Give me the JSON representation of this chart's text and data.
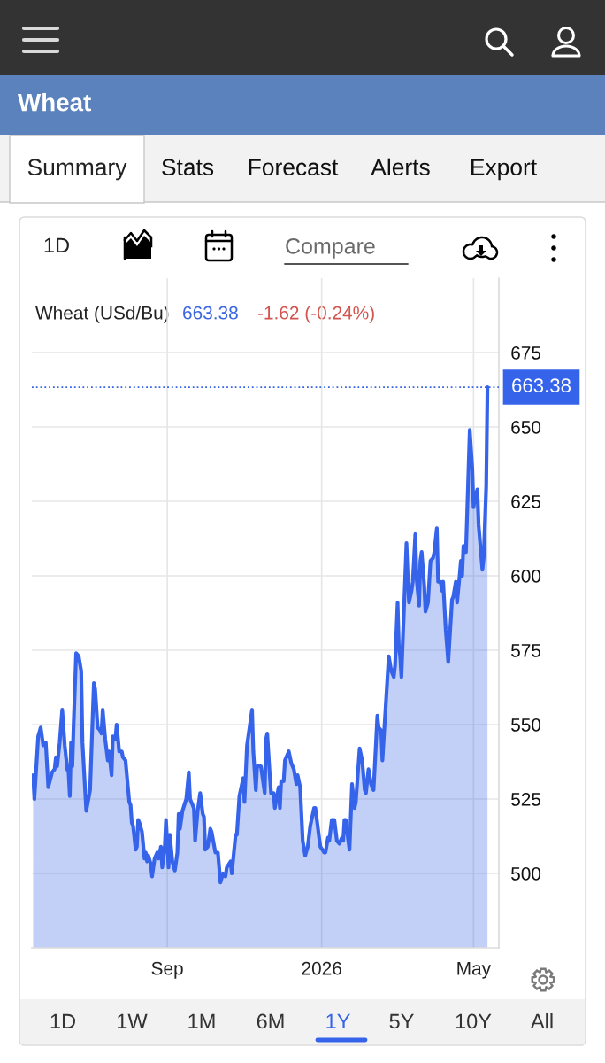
{
  "chart_data": {
    "type": "area",
    "title": "Wheat",
    "annotations": [
      "Summary",
      "Stats",
      "Forecast",
      "Alerts",
      "Export",
      "1D",
      "Compare",
      "Wheat (USd/Bu)",
      "663.38",
      "-1.62 (-0.24%)",
      "1D",
      "1W",
      "1M",
      "6M",
      "1Y",
      "5Y",
      "10Y",
      "All"
    ],
    "x": [
      "2025-05-18",
      "2025-05-19",
      "2025-05-22",
      "2025-05-24",
      "2025-05-26",
      "2025-05-28",
      "2025-05-30",
      "2025-06-02",
      "2025-06-04",
      "2025-06-05",
      "2025-06-06",
      "2025-06-08",
      "2025-06-10",
      "2025-06-12",
      "2025-06-14",
      "2025-06-15",
      "2025-06-16",
      "2025-06-17",
      "2025-06-18",
      "2025-06-19",
      "2025-06-21",
      "2025-06-23",
      "2025-06-25",
      "2025-06-26",
      "2025-06-29",
      "2025-07-02",
      "2025-07-05",
      "2025-07-06",
      "2025-07-08",
      "2025-07-10",
      "2025-07-11",
      "2025-07-12",
      "2025-07-14",
      "2025-07-16",
      "2025-07-17",
      "2025-07-19",
      "2025-07-20",
      "2025-07-22",
      "2025-07-23",
      "2025-07-25",
      "2025-07-27",
      "2025-07-28",
      "2025-07-30",
      "2025-08-02",
      "2025-08-03",
      "2025-08-04",
      "2025-08-05",
      "2025-08-07",
      "2025-08-08",
      "2025-08-09",
      "2025-08-10",
      "2025-08-12",
      "2025-08-14",
      "2025-08-15",
      "2025-08-16",
      "2025-08-17",
      "2025-08-19",
      "2025-08-20",
      "2025-08-22",
      "2025-08-24",
      "2025-08-25",
      "2025-08-27",
      "2025-08-28",
      "2025-08-30",
      "2025-08-31",
      "2025-09-02",
      "2025-09-03",
      "2025-09-05",
      "2025-09-07",
      "2025-09-09",
      "2025-09-10",
      "2025-09-11",
      "2025-09-13",
      "2025-09-16",
      "2025-09-18",
      "2025-09-19",
      "2025-09-22",
      "2025-09-23",
      "2025-09-25",
      "2025-09-27",
      "2025-09-29",
      "2025-09-30",
      "2025-10-01",
      "2025-10-03",
      "2025-10-05",
      "2025-10-06",
      "2025-10-09",
      "2025-10-11",
      "2025-10-12",
      "2025-10-13",
      "2025-10-15",
      "2025-10-17",
      "2025-10-18",
      "2025-10-21",
      "2025-10-22",
      "2025-10-25",
      "2025-10-26",
      "2025-10-28",
      "2025-10-31",
      "2025-11-01",
      "2025-11-03",
      "2025-11-07",
      "2025-11-08",
      "2025-11-10",
      "2025-11-11",
      "2025-11-14",
      "2025-11-17",
      "2025-11-18",
      "2025-11-19",
      "2025-11-21",
      "2025-11-22",
      "2025-11-24",
      "2025-11-25",
      "2025-11-28",
      "2025-11-29",
      "2025-11-30",
      "2025-12-02",
      "2025-12-03",
      "2025-12-06",
      "2025-12-08",
      "2025-12-10",
      "2025-12-12",
      "2025-12-13",
      "2025-12-15",
      "2025-12-17",
      "2025-12-19",
      "2025-12-21",
      "2025-12-23",
      "2025-12-26",
      "2025-12-27",
      "2025-12-30",
      "2025-12-31",
      "2026-01-03",
      "2026-01-04",
      "2026-01-06",
      "2026-01-07",
      "2026-01-09",
      "2026-01-11",
      "2026-01-13",
      "2026-01-15",
      "2026-01-17",
      "2026-01-18",
      "2026-01-19",
      "2026-01-20",
      "2026-01-22",
      "2026-01-23",
      "2026-01-25",
      "2026-01-27",
      "2026-01-28",
      "2026-01-31",
      "2026-02-02",
      "2026-02-04",
      "2026-02-05",
      "2026-02-07",
      "2026-02-09",
      "2026-02-11",
      "2026-02-14",
      "2026-02-15",
      "2026-02-17",
      "2026-02-18",
      "2026-02-23",
      "2026-02-25",
      "2026-02-27",
      "2026-02-28",
      "2026-03-02",
      "2026-03-03",
      "2026-03-04",
      "2026-03-05",
      "2026-03-09",
      "2026-03-10",
      "2026-03-11",
      "2026-03-13",
      "2026-03-14",
      "2026-03-16",
      "2026-03-17",
      "2026-03-19",
      "2026-03-20",
      "2026-03-21",
      "2026-03-23",
      "2026-03-24",
      "2026-03-26",
      "2026-03-28",
      "2026-03-30",
      "2026-03-31",
      "2026-04-02",
      "2026-04-03",
      "2026-04-05",
      "2026-04-06",
      "2026-04-07",
      "2026-04-09",
      "2026-04-11",
      "2026-04-14",
      "2026-04-15",
      "2026-04-17",
      "2026-04-18",
      "2026-04-20",
      "2026-04-21",
      "2026-04-22",
      "2026-04-23",
      "2026-04-25",
      "2026-04-28",
      "2026-04-30",
      "2026-05-01",
      "2026-05-02",
      "2026-05-04",
      "2026-05-05",
      "2026-05-08",
      "2026-05-09",
      "2026-05-11",
      "2026-05-12"
    ],
    "series": [
      {
        "color": "#3563e9",
        "values": [
          533,
          525,
          546,
          549,
          543,
          544,
          529,
          534,
          535,
          539,
          536,
          544,
          555,
          543,
          535,
          534,
          526,
          544,
          536,
          550,
          574,
          573,
          568,
          544,
          521,
          528,
          564,
          562,
          549,
          548,
          547,
          555,
          545,
          538,
          541,
          533,
          546,
          545,
          550,
          541,
          541,
          539,
          538,
          524,
          523,
          517,
          516,
          508,
          509,
          518,
          517,
          514,
          505,
          507,
          504,
          506,
          503,
          499,
          505,
          507,
          505,
          509,
          502,
          509,
          518,
          502,
          513,
          504,
          501,
          507,
          520,
          515,
          521,
          525,
          534,
          525,
          522,
          511,
          521,
          527,
          520,
          519,
          508,
          509,
          515,
          514,
          507,
          507,
          502,
          497,
          500,
          499,
          502,
          504,
          500,
          513,
          513,
          526,
          532,
          524,
          543,
          555,
          541,
          528,
          536,
          536,
          527,
          545,
          547,
          533,
          527,
          527,
          522,
          529,
          522,
          531,
          531,
          538,
          541,
          537,
          535,
          530,
          533,
          529,
          511,
          506,
          509,
          516,
          522,
          522,
          512,
          509,
          507,
          507,
          512,
          511,
          518,
          518,
          511,
          510,
          512,
          511,
          518,
          518,
          511,
          508,
          530,
          522,
          524,
          542,
          538,
          528,
          527,
          535,
          530,
          528,
          553,
          549,
          548,
          538,
          573,
          568,
          566,
          570,
          591,
          576,
          573,
          566,
          611,
          600,
          591,
          595,
          598,
          614,
          599,
          590,
          605,
          608,
          597,
          588,
          591,
          605,
          606,
          608,
          616,
          598,
          598,
          595,
          598,
          582,
          571,
          592,
          593,
          598,
          591,
          600,
          605,
          600,
          610,
          608,
          649,
          636,
          623,
          626,
          629,
          617,
          602,
          606,
          630,
          663.38
        ]
      }
    ],
    "xlim": [
      "2025-05-17",
      "2026-05-21"
    ],
    "xticks": [
      {
        "value": "2025-09-01",
        "label": "Sep"
      },
      {
        "value": "2026-01-01",
        "label": "2026"
      },
      {
        "value": "2026-05-01",
        "label": "May"
      }
    ],
    "ylim": [
      475,
      700
    ],
    "yticks": [
      500,
      525,
      550,
      575,
      600,
      625,
      650,
      675
    ],
    "grid": true,
    "ref_lines": [
      {
        "axis": "y",
        "value": 663.38,
        "label": "663.38",
        "color": "#3563e9",
        "line_style": "dotted"
      }
    ]
  }
}
